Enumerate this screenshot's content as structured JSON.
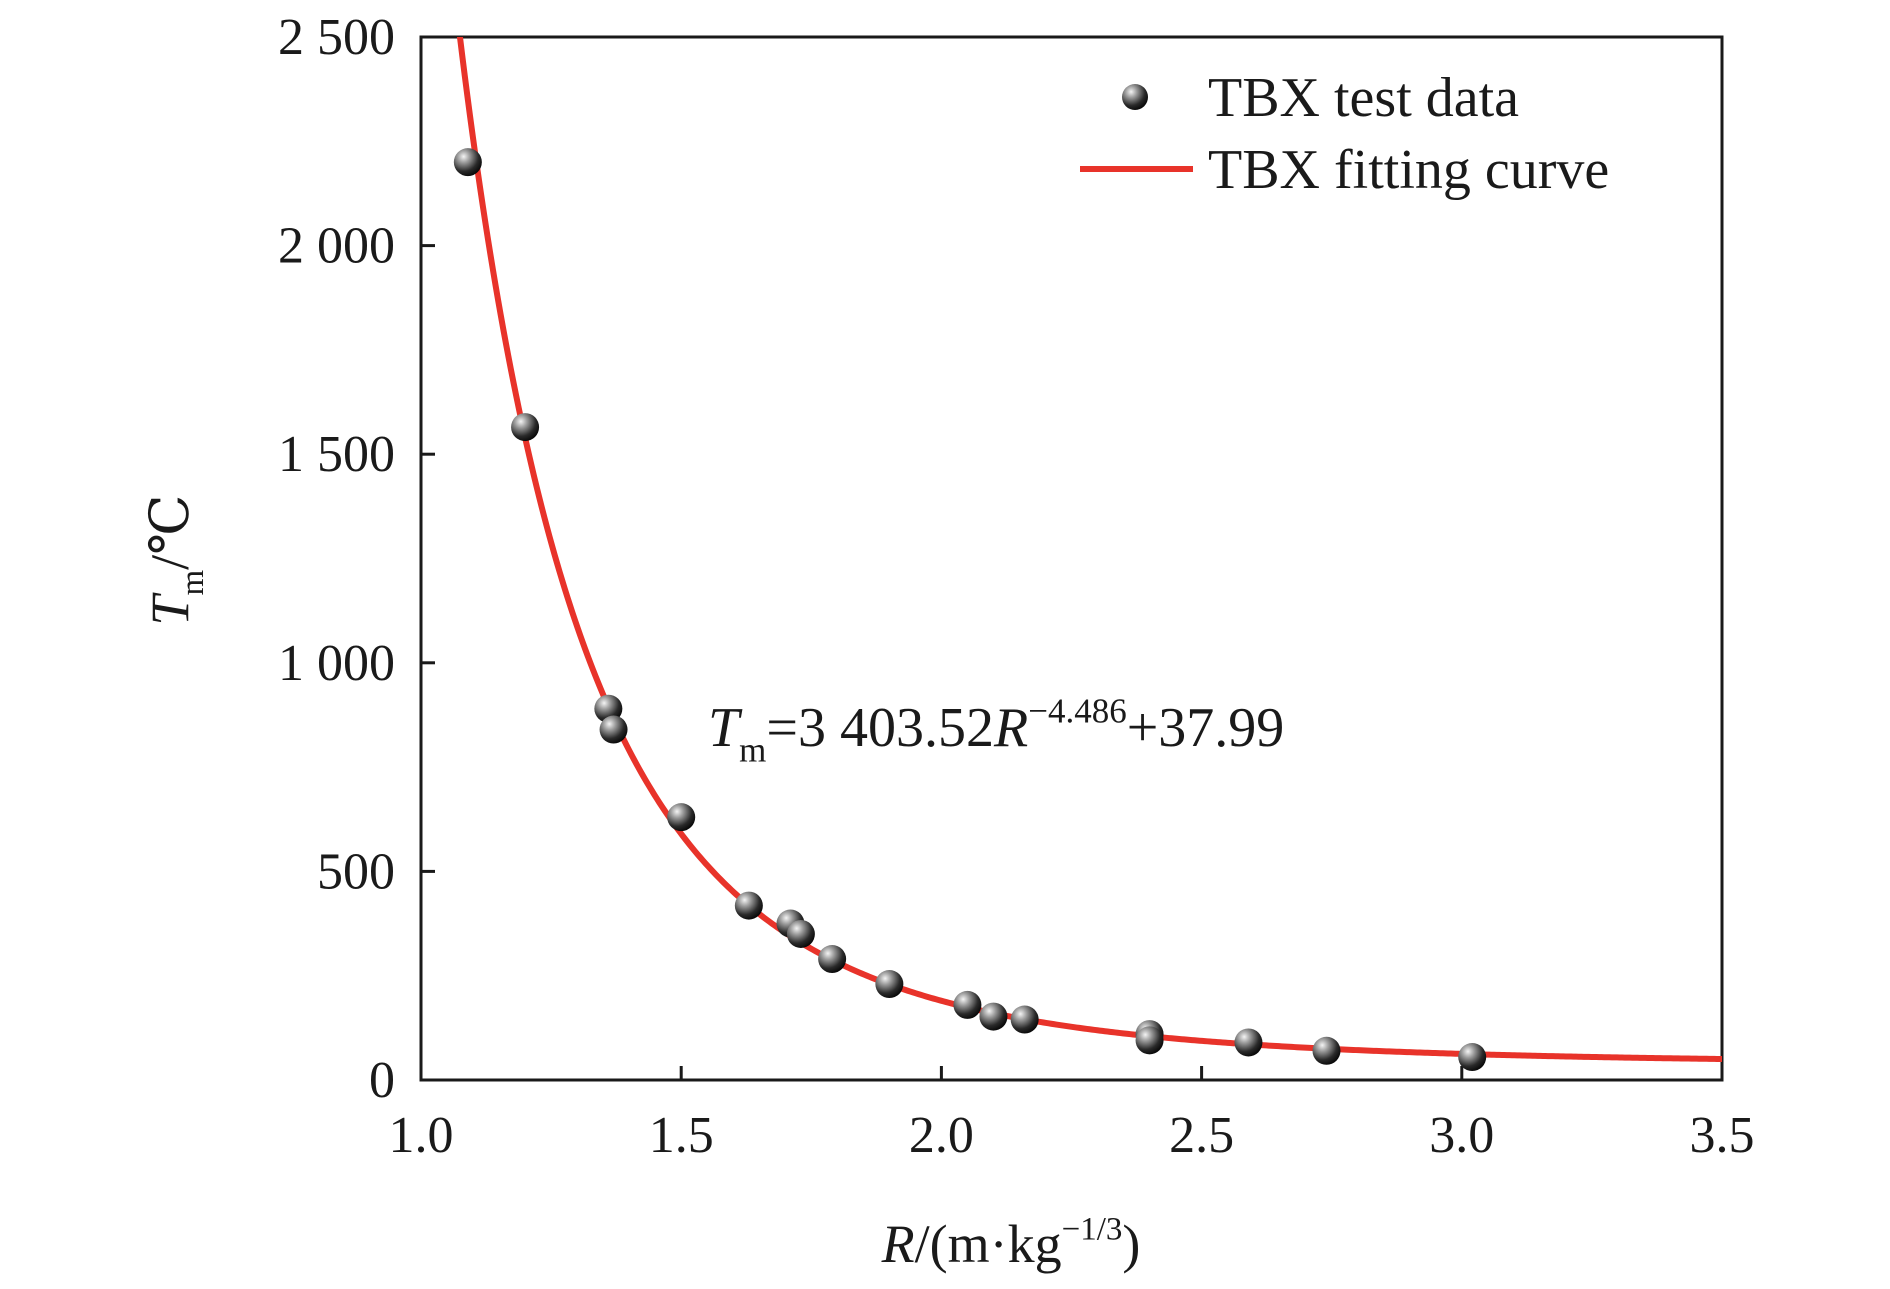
{
  "chart_data": {
    "type": "scatter",
    "title": "",
    "xlabel": {
      "parts": [
        {
          "text": "R",
          "style": "italic"
        },
        {
          "text": "/(m·kg",
          "style": "normal"
        },
        {
          "text": "−1/3",
          "style": "sup"
        },
        {
          "text": ")",
          "style": "normal"
        }
      ]
    },
    "ylabel": {
      "parts": [
        {
          "text": "T",
          "style": "italic"
        },
        {
          "text": "m",
          "style": "sub"
        },
        {
          "text": "/℃",
          "style": "normal"
        }
      ]
    },
    "xlim": [
      1.0,
      3.5
    ],
    "ylim": [
      0,
      2500
    ],
    "x_ticks": [
      1.0,
      1.5,
      2.0,
      2.5,
      3.0,
      3.5
    ],
    "x_tick_labels": [
      "1.0",
      "1.5",
      "2.0",
      "2.5",
      "3.0",
      "3.5"
    ],
    "y_ticks": [
      0,
      500,
      1000,
      1500,
      2000,
      2500
    ],
    "y_tick_labels": [
      "0",
      "500",
      "1 000",
      "1 500",
      "2 000",
      "2 500"
    ],
    "grid": false,
    "legend_position": "top-right",
    "series": [
      {
        "name": "TBX test data",
        "kind": "scatter",
        "color": "#2b2b2b",
        "points": [
          [
            1.09,
            2200
          ],
          [
            1.2,
            1565
          ],
          [
            1.36,
            890
          ],
          [
            1.37,
            840
          ],
          [
            1.5,
            630
          ],
          [
            1.63,
            418
          ],
          [
            1.71,
            375
          ],
          [
            1.73,
            350
          ],
          [
            1.79,
            290
          ],
          [
            1.9,
            230
          ],
          [
            2.05,
            180
          ],
          [
            2.1,
            152
          ],
          [
            2.16,
            145
          ],
          [
            2.4,
            110
          ],
          [
            2.4,
            95
          ],
          [
            2.59,
            90
          ],
          [
            2.74,
            70
          ],
          [
            3.02,
            55
          ]
        ]
      },
      {
        "name": "TBX fitting curve",
        "kind": "line",
        "color": "#e8332a",
        "equation": {
          "a": 3403.52,
          "b": -4.486,
          "c": 37.99
        }
      }
    ],
    "annotation": {
      "parts": [
        {
          "text": "T",
          "style": "italic"
        },
        {
          "text": "m",
          "style": "sub"
        },
        {
          "text": "=3 403.52",
          "style": "normal"
        },
        {
          "text": "R",
          "style": "italic"
        },
        {
          "text": "−4.486",
          "style": "sup"
        },
        {
          "text": "+37.99",
          "style": "normal"
        }
      ]
    }
  }
}
